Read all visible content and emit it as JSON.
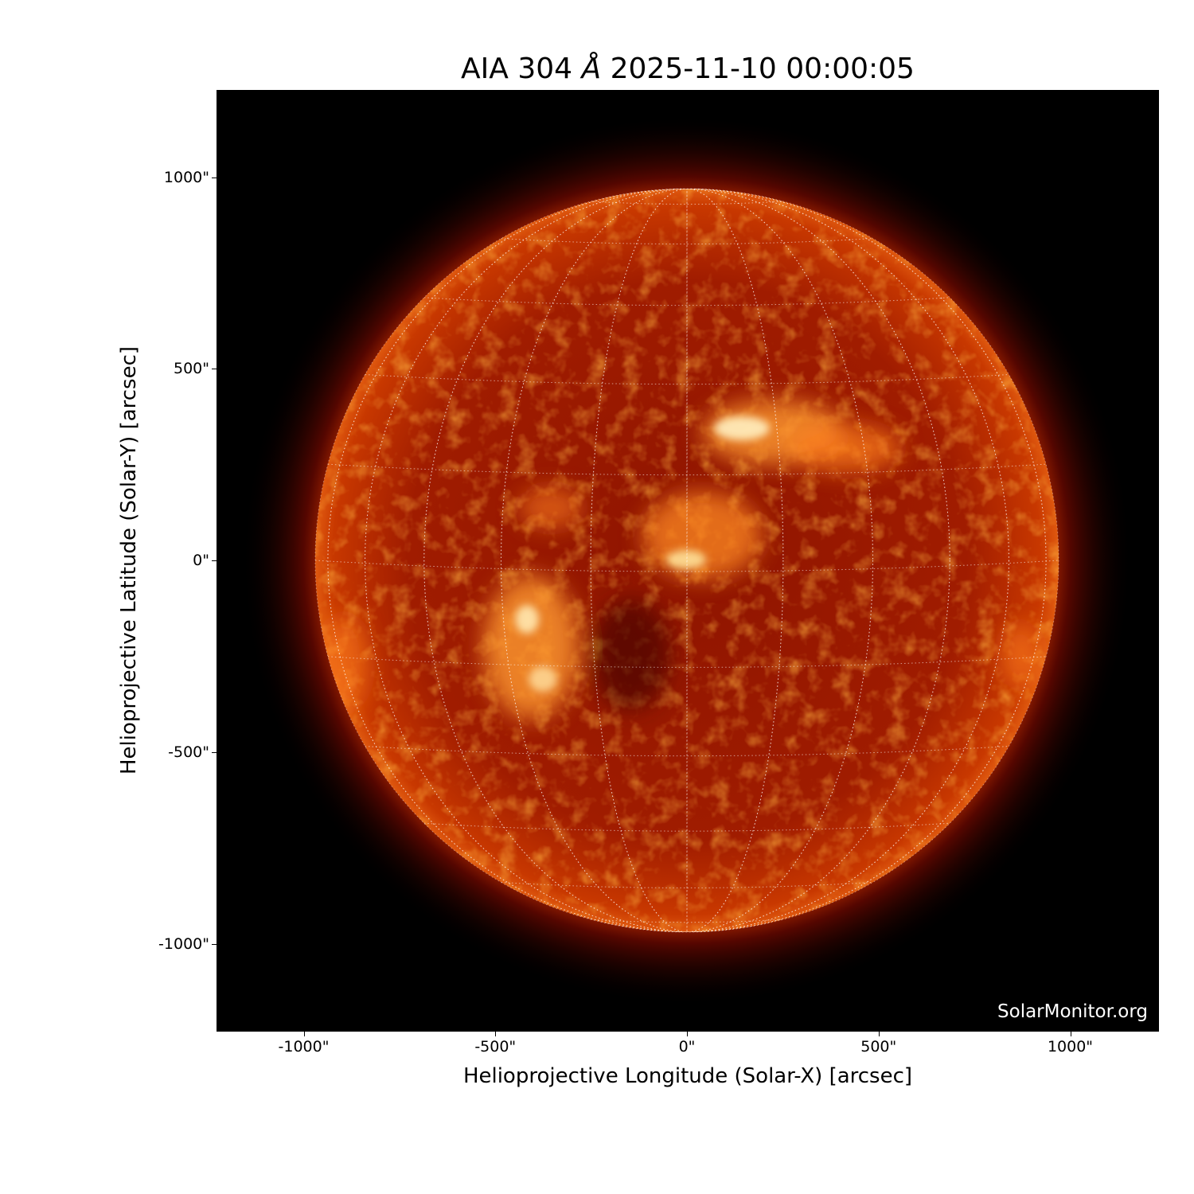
{
  "title": {
    "prefix": "AIA 304 ",
    "unit": "Å",
    "datetime": " 2025-11-10 00:00:05"
  },
  "xaxis": {
    "label": "Helioprojective Longitude (Solar-X) [arcsec]",
    "ticks": [
      -1000,
      -500,
      0,
      500,
      1000
    ],
    "tick_labels": [
      "-1000\"",
      "-500\"",
      "0\"",
      "500\"",
      "1000\""
    ],
    "range": [
      -1230,
      1230
    ]
  },
  "yaxis": {
    "label": "Helioprojective Latitude (Solar-Y) [arcsec]",
    "ticks": [
      1000,
      500,
      0,
      -500,
      -1000
    ],
    "tick_labels": [
      "1000\"",
      "500\"",
      "0\"",
      "-500\"",
      "-1000\""
    ],
    "range": [
      -1230,
      1230
    ]
  },
  "watermark": "SolarMonitor.org",
  "image": {
    "subject": "solar disk",
    "colormap": "sdoaia304",
    "grid": "heliographic, 15 degree spacing, dotted white",
    "colors": {
      "disk": "#a01800",
      "bright": "#ffd080",
      "background": "#000000"
    }
  }
}
